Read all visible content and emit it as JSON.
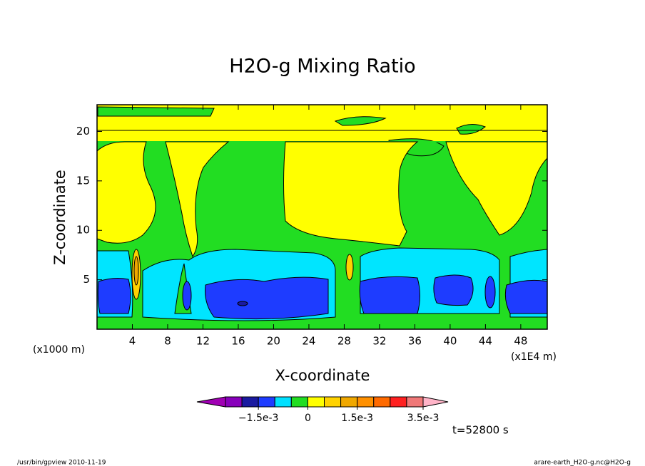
{
  "chart_data": {
    "type": "contour",
    "title": "H2O-g Mixing Ratio",
    "x_label": "X-coordinate",
    "y_label": "Z-coordinate",
    "x_unit_label": "(x1000 m)",
    "x_scale_label": "(x1E4 m)",
    "xlim": [
      0,
      51
    ],
    "xticks": [
      4,
      8,
      12,
      16,
      20,
      24,
      28,
      32,
      36,
      40,
      44,
      48
    ],
    "ylim": [
      0,
      22.7
    ],
    "yticks": [
      5,
      10,
      15,
      20
    ],
    "colorbar": {
      "colors": [
        "#a000b4",
        "#8800bb",
        "#1a1aa0",
        "#1e3cff",
        "#00e0ff",
        "#22dd22",
        "#ffff00",
        "#ffd200",
        "#f0a800",
        "#ff9000",
        "#ff6a00",
        "#ff2020",
        "#f07878",
        "#ffb4c8"
      ],
      "levels": [
        -0.0025,
        -0.002,
        -0.0015,
        -0.001,
        -0.0005,
        0,
        0.0005,
        0.001,
        0.0015,
        0.002,
        0.0025,
        0.003,
        0.0035
      ],
      "ticks": [
        {
          "value": -0.0015,
          "label": "−1.5e-3"
        },
        0,
        {
          "value": 0.0015,
          "label": "1.5e-3"
        },
        {
          "value": 0.0035,
          "label": "3.5e-3"
        }
      ]
    },
    "time_label": "t=52800 s",
    "footer_left": "/usr/bin/gpview   2010-11-19",
    "footer_right": "arare-earth_H2O-g.nc@H2O-g"
  }
}
